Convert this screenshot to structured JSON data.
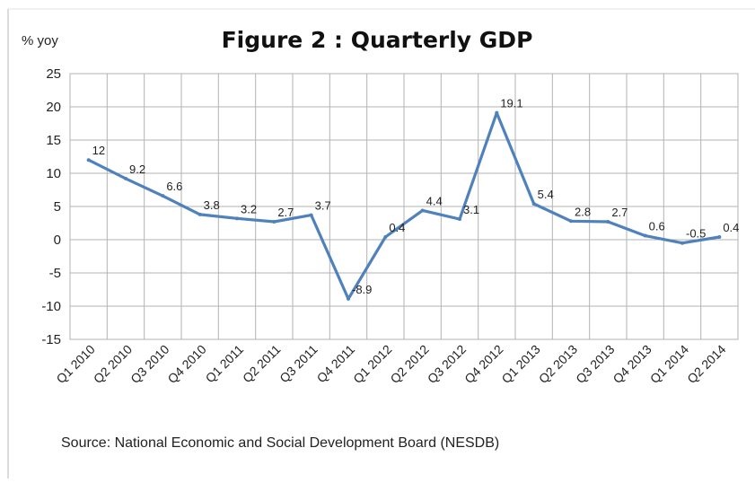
{
  "chart_data": {
    "type": "line",
    "title": "Figure 2 : Quarterly GDP",
    "ylabel": "% yoy",
    "xlabel": "",
    "source": "Source: National Economic  and Social Development  Board (NESDB)",
    "ylim": [
      -15,
      25
    ],
    "yticks": [
      25,
      20,
      15,
      10,
      5,
      0,
      -5,
      -10,
      -15
    ],
    "grid": true,
    "legend": "none",
    "line_color": "#4f81bd",
    "categories": [
      "Q1 2010",
      "Q2 2010",
      "Q3 2010",
      "Q4 2010",
      "Q1 2011",
      "Q2 2011",
      "Q3 2011",
      "Q4 2011",
      "Q1 2012",
      "Q2 2012",
      "Q3 2012",
      "Q4 2012",
      "Q1 2013",
      "Q2 2013",
      "Q3 2013",
      "Q4 2013",
      "Q1 2014",
      "Q2 2014"
    ],
    "values": [
      12,
      9.2,
      6.6,
      3.8,
      3.2,
      2.7,
      3.7,
      -8.9,
      0.4,
      4.4,
      3.1,
      19.1,
      5.4,
      2.8,
      2.7,
      0.6,
      -0.5,
      0.4
    ],
    "value_labels": [
      "12",
      "9.2",
      "6.6",
      "3.8",
      "3.2",
      "2.7",
      "3.7",
      "-8.9",
      "0.4",
      "4.4",
      "3.1",
      "19.1",
      "5.4",
      "2.8",
      "2.7",
      "0.6",
      "-0.5",
      "0.4"
    ]
  }
}
